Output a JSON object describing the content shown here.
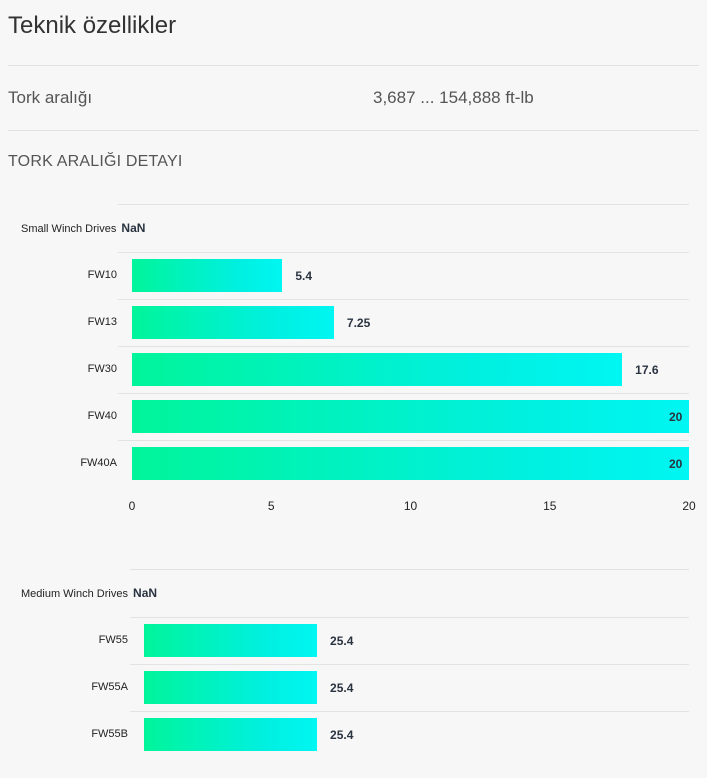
{
  "page": {
    "title": "Teknik özellikler",
    "spec_label": "Tork aralığı",
    "spec_value": "3,687 ... 154,888 ft-lb",
    "section_heading": "TORK ARALIĞI DETAYI"
  },
  "chart_data": [
    {
      "type": "bar",
      "orientation": "horizontal",
      "title": "Small Winch Drives",
      "title_suffix": "NaN",
      "categories": [
        "FW10",
        "FW13",
        "FW30",
        "FW40",
        "FW40A"
      ],
      "values": [
        5.4,
        7.25,
        17.6,
        20,
        20
      ],
      "value_labels": [
        "5.4",
        "7.25",
        "17.6",
        "20",
        "20"
      ],
      "xlim": [
        0,
        20
      ],
      "ticks": [
        "0",
        "5",
        "10",
        "15",
        "20"
      ],
      "bar_gradient": [
        "#00f59a",
        "#00f6f2"
      ]
    },
    {
      "type": "bar",
      "orientation": "horizontal",
      "title": "Medium Winch Drives",
      "title_suffix": "NaN",
      "categories": [
        "FW55",
        "FW55A",
        "FW55B"
      ],
      "values": [
        25.4,
        25.4,
        25.4
      ],
      "value_labels": [
        "25.4",
        "25.4",
        "25.4"
      ],
      "bar_gradient": [
        "#00f59a",
        "#00f6f2"
      ]
    }
  ]
}
